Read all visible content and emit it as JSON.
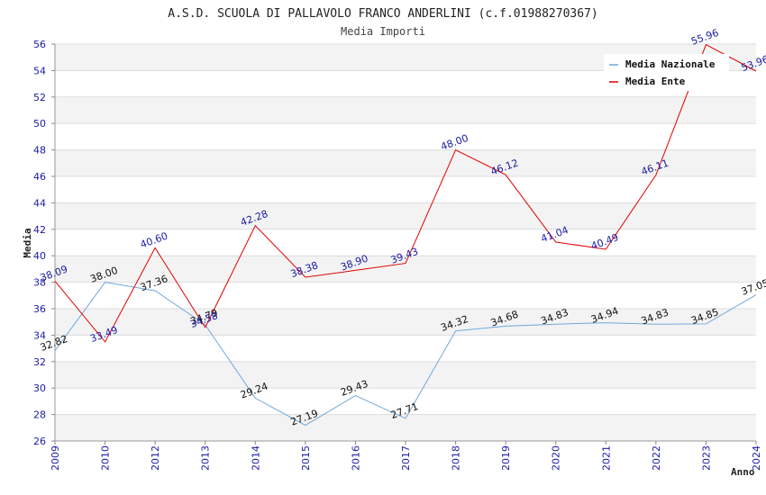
{
  "chart_data": {
    "type": "line",
    "title": "A.S.D. SCUOLA DI PALLAVOLO FRANCO ANDERLINI (c.f.01988270367)",
    "subtitle": "Media Importi",
    "xlabel": "Anno",
    "ylabel": "Media",
    "ylim": [
      26,
      56
    ],
    "yticks": [
      "26",
      "28",
      "30",
      "32",
      "34",
      "36",
      "38",
      "40",
      "42",
      "44",
      "46",
      "48",
      "50",
      "52",
      "54",
      "56"
    ],
    "categories": [
      "2009",
      "2010",
      "2012",
      "2013",
      "2014",
      "2015",
      "2016",
      "2017",
      "2018",
      "2019",
      "2020",
      "2021",
      "2022",
      "2023",
      "2024"
    ],
    "grid": true,
    "legend_position": "top-right",
    "series": [
      {
        "name": "Media Nazionale",
        "color": "#6fa8dc",
        "label_color": "#111111",
        "values": [
          32.82,
          38.0,
          37.36,
          34.79,
          29.24,
          27.19,
          29.43,
          27.71,
          34.32,
          34.68,
          34.83,
          34.94,
          34.83,
          34.85,
          37.05
        ],
        "labels": [
          "32.82",
          "38.00",
          "37.36",
          "34.79",
          "29.24",
          "27.19",
          "29.43",
          "27.71",
          "34.32",
          "34.68",
          "34.83",
          "34.94",
          "34.83",
          "34.85",
          "37.05"
        ]
      },
      {
        "name": "Media Ente",
        "color": "#e00000",
        "label_color": "#1a1aa6",
        "values": [
          38.09,
          33.49,
          40.6,
          34.58,
          42.28,
          38.38,
          38.9,
          39.43,
          48.0,
          46.12,
          41.04,
          40.49,
          46.11,
          55.96,
          53.96
        ],
        "labels": [
          "38.09",
          "33.49",
          "40.60",
          "34.58",
          "42.28",
          "38.38",
          "38.90",
          "39.43",
          "48.00",
          "46.12",
          "41.04",
          "40.49",
          "46.11",
          "55.96",
          "53.96"
        ]
      }
    ]
  }
}
